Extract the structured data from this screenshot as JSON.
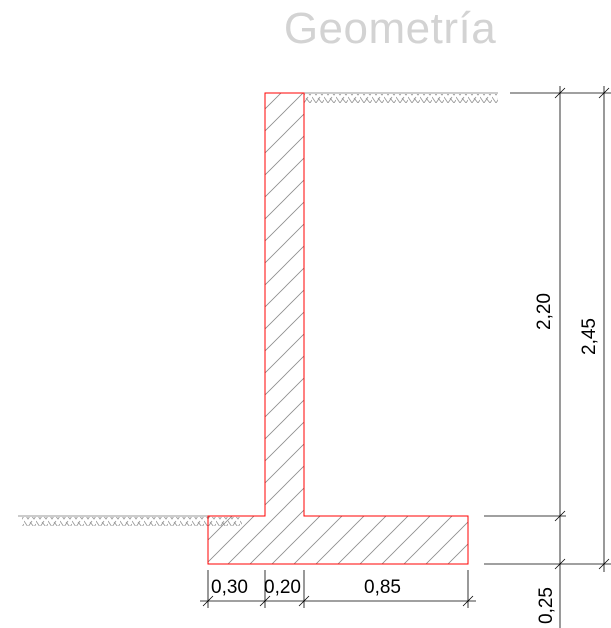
{
  "title": "Geometría",
  "dimensions": {
    "toe_width": "0,30",
    "stem_thickness": "0,20",
    "heel_width": "0,85",
    "stem_height": "2,20",
    "total_height": "2,45",
    "footing_thickness": "0,25"
  },
  "colors": {
    "outline": "#ff0000",
    "hatch": "#8c8c8c",
    "ground": "#9a9a9a",
    "dimension": "#000000",
    "title": "#d3d3d3"
  }
}
